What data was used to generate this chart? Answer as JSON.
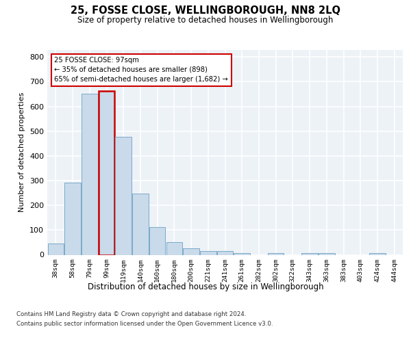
{
  "title": "25, FOSSE CLOSE, WELLINGBOROUGH, NN8 2LQ",
  "subtitle": "Size of property relative to detached houses in Wellingborough",
  "xlabel": "Distribution of detached houses by size in Wellingborough",
  "ylabel": "Number of detached properties",
  "bar_color": "#c9daea",
  "bar_edge_color": "#7aaac8",
  "highlight_edge_color": "#cc0000",
  "annotation_box_color": "#ffffff",
  "annotation_box_edge": "#cc0000",
  "annotation_text": "25 FOSSE CLOSE: 97sqm\n← 35% of detached houses are smaller (898)\n65% of semi-detached houses are larger (1,682) →",
  "property_bin_index": 3,
  "categories": [
    "38sqm",
    "58sqm",
    "79sqm",
    "99sqm",
    "119sqm",
    "140sqm",
    "160sqm",
    "180sqm",
    "200sqm",
    "221sqm",
    "241sqm",
    "261sqm",
    "282sqm",
    "302sqm",
    "322sqm",
    "343sqm",
    "363sqm",
    "383sqm",
    "403sqm",
    "424sqm",
    "444sqm"
  ],
  "values": [
    45,
    293,
    651,
    663,
    478,
    247,
    113,
    50,
    25,
    14,
    14,
    8,
    0,
    8,
    0,
    8,
    8,
    0,
    0,
    8,
    0
  ],
  "ylim": [
    0,
    830
  ],
  "yticks": [
    0,
    100,
    200,
    300,
    400,
    500,
    600,
    700,
    800
  ],
  "footer1": "Contains HM Land Registry data © Crown copyright and database right 2024.",
  "footer2": "Contains public sector information licensed under the Open Government Licence v3.0.",
  "background_color": "#edf2f7",
  "grid_color": "#ffffff",
  "fig_background": "#ffffff"
}
